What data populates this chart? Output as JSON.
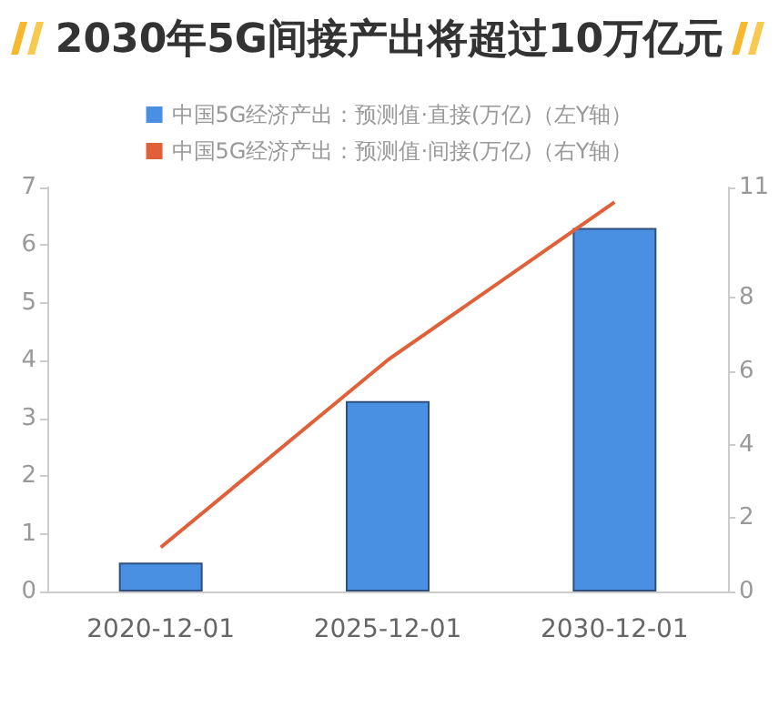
{
  "chart_data": {
    "type": "bar",
    "title": "2030年5G间接产出将超过10万亿元",
    "categories": [
      "2020-12-01",
      "2025-12-01",
      "2030-12-01"
    ],
    "series": [
      {
        "name": "中国5G经济产出：预测值·直接(万亿)（左Y轴）",
        "color": "#4a90e2",
        "values": [
          0.5,
          3.3,
          6.3
        ]
      },
      {
        "name": "中国5G经济产出：预测值·间接(万亿)（右Y轴）",
        "type": "line",
        "axis": "y2",
        "color": "#e0603a",
        "values": [
          1.2,
          6.3,
          10.6
        ]
      }
    ],
    "ylim": [
      0,
      7
    ],
    "yticks": [
      0,
      1,
      2,
      3,
      4,
      5,
      6,
      7
    ],
    "y2lim": [
      0,
      11
    ],
    "y2ticks": [
      0,
      2,
      4,
      6,
      8,
      11
    ],
    "legend": "top",
    "grid": false,
    "marker": "none"
  }
}
